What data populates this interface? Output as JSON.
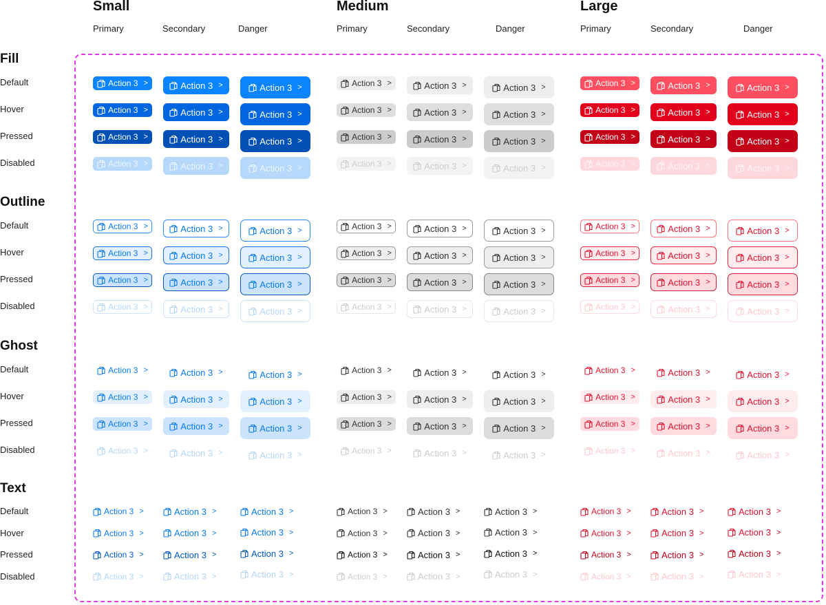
{
  "button_label": "Action 3",
  "chevron_icon": "chevron-right-icon",
  "leading_icon": "copy-document-icon",
  "groups": [
    {
      "title": "Small",
      "columns": [
        "Primary",
        "Secondary",
        "Danger"
      ],
      "tone": "blue"
    },
    {
      "title": "Medium",
      "columns": [
        "Primary",
        "Secondary",
        "Danger"
      ],
      "tone": "gray"
    },
    {
      "title": "Large",
      "columns": [
        "Primary",
        "Secondary",
        "Danger"
      ],
      "tone": "red"
    }
  ],
  "sections": [
    {
      "title": "Fill",
      "states": [
        "Default",
        "Hover",
        "Pressed",
        "Disabled"
      ]
    },
    {
      "title": "Outline",
      "states": [
        "Default",
        "Hover",
        "Pressed",
        "Disabled"
      ]
    },
    {
      "title": "Ghost",
      "states": [
        "Default",
        "Hover",
        "Pressed",
        "Disabled"
      ]
    },
    {
      "title": "Text",
      "states": [
        "Default",
        "Hover",
        "Pressed",
        "Disabled"
      ]
    }
  ],
  "colors": {
    "frame_border": "#e23be6",
    "blue": {
      "fill": [
        "#0a84ff",
        "#0066e0",
        "#0050b5",
        "#b5d8fb"
      ],
      "fg": "#0a7cf0",
      "fg_dim": "#b5d6f7",
      "tint": [
        "#ffffff",
        "#e3f0ff",
        "#cbe3fd",
        "#ffffff"
      ],
      "border": [
        "#2b8cf5",
        "#1270e0",
        "#0a5dc0",
        "#cde3fa"
      ]
    },
    "gray": {
      "fill": [
        "#eeeeee",
        "#dedede",
        "#cccccc",
        "#f3f3f3"
      ],
      "fg": "#333333",
      "fg_dim": "#cccccc",
      "tint": [
        "#ffffff",
        "#eeeeee",
        "#dcdcdc",
        "#ffffff"
      ],
      "border": [
        "#9a9a9a",
        "#9a9a9a",
        "#888888",
        "#e6e6e6"
      ]
    },
    "red": {
      "fill": [
        "#ff4f60",
        "#e3001d",
        "#c20017",
        "#ffd8dd"
      ],
      "fg": "#e3132f",
      "fg_dim": "#ffc9cf",
      "tint": [
        "#ffffff",
        "#ffecee",
        "#ffdadf",
        "#ffffff"
      ],
      "border": [
        "#ff6f7c",
        "#e5203a",
        "#c9243a",
        "#ffdade"
      ]
    }
  }
}
